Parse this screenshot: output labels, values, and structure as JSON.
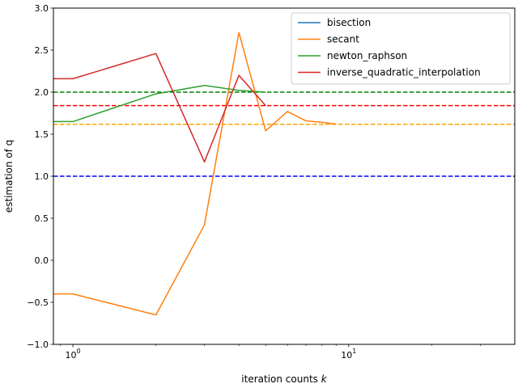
{
  "chart_data": {
    "type": "line",
    "xlabel": "iteration counts k",
    "ylabel": "estimation of q",
    "xscale": "log",
    "xlim": [
      0.85,
      40
    ],
    "ylim": [
      -1.0,
      3.0
    ],
    "grid": false,
    "legend_position": "top-right",
    "y_ticks": [
      -1.0,
      -0.5,
      0.0,
      0.5,
      1.0,
      1.5,
      2.0,
      2.5,
      3.0
    ],
    "y_tick_labels": [
      "−1.0",
      "−0.5",
      "0.0",
      "0.5",
      "1.0",
      "1.5",
      "2.0",
      "2.5",
      "3.0"
    ],
    "x_major_ticks": [
      1,
      10
    ],
    "x_minor_ticks": [
      0.9,
      2,
      3,
      4,
      5,
      6,
      7,
      8,
      9,
      20,
      30
    ],
    "series": [
      {
        "name": "bisection",
        "color": "#1f77b4",
        "x": [],
        "y": []
      },
      {
        "name": "secant",
        "color": "#ff7f0e",
        "x": [
          0.8,
          1,
          2,
          3,
          4,
          5,
          6,
          7,
          8,
          9
        ],
        "y": [
          -0.4,
          -0.4,
          -0.65,
          0.42,
          2.71,
          1.54,
          1.77,
          1.66,
          1.64,
          1.62
        ]
      },
      {
        "name": "newton_raphson",
        "color": "#2ca02c",
        "x": [
          0.8,
          1,
          2,
          3,
          4,
          5
        ],
        "y": [
          1.65,
          1.65,
          1.98,
          2.08,
          2.02,
          2.0
        ]
      },
      {
        "name": "inverse_quadratic_interpolation",
        "color": "#d62728",
        "x": [
          0.8,
          1,
          2,
          3,
          4,
          5
        ],
        "y": [
          2.16,
          2.16,
          2.46,
          1.17,
          2.2,
          1.84
        ]
      }
    ],
    "reference_lines": [
      {
        "y": 2.0,
        "color": "#008000"
      },
      {
        "y": 1.84,
        "color": "#ff0000"
      },
      {
        "y": 1.618,
        "color": "#ffa500"
      },
      {
        "y": 1.0,
        "color": "#0000ff"
      }
    ]
  }
}
